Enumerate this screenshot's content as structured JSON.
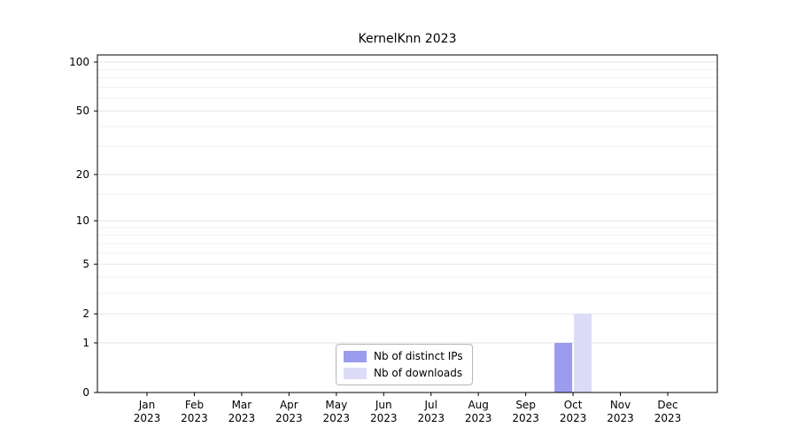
{
  "chart_data": {
    "type": "bar",
    "title": "KernelKnn 2023",
    "categories": [
      "Jan",
      "Feb",
      "Mar",
      "Apr",
      "May",
      "Jun",
      "Jul",
      "Aug",
      "Sep",
      "Oct",
      "Nov",
      "Dec"
    ],
    "year_label": "2023",
    "series": [
      {
        "name": "Nb of distinct IPs",
        "color": "#9b9bef",
        "values": [
          0,
          0,
          0,
          0,
          0,
          0,
          0,
          0,
          0,
          1,
          0,
          0
        ]
      },
      {
        "name": "Nb of downloads",
        "color": "#dcdcf8",
        "values": [
          0,
          0,
          0,
          0,
          0,
          0,
          0,
          0,
          0,
          2,
          0,
          0
        ]
      }
    ],
    "yticks": [
      0,
      1,
      2,
      5,
      10,
      20,
      50,
      100
    ],
    "minor_yticks": [
      3,
      4,
      6,
      7,
      8,
      9,
      15,
      30,
      40,
      60,
      70,
      80,
      90
    ],
    "ylim": [
      0,
      100
    ],
    "yscale": "log1p",
    "xlabel": "",
    "ylabel": "",
    "grid": true,
    "legend_position": "bottom-center"
  },
  "colors": {
    "axis": "#000000",
    "major_grid": "#e6e6e6",
    "minor_grid": "#f1f1f1",
    "tick_label": "#000000",
    "background": "#ffffff"
  }
}
